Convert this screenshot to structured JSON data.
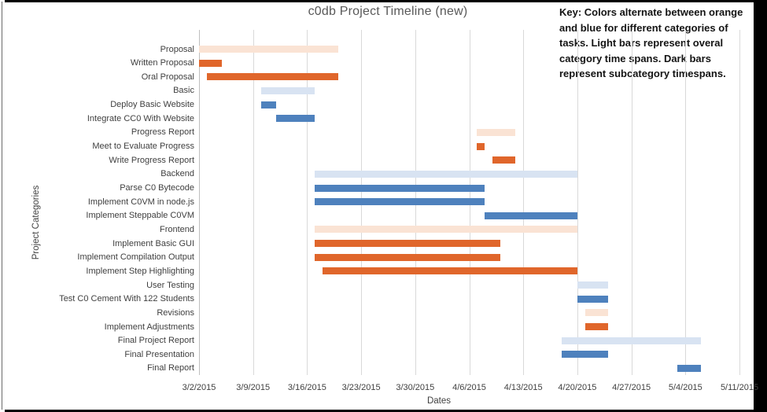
{
  "title": "c0db Project Timeline (new)",
  "key": {
    "lines": [
      "Key: Colors alternate between orange",
      "and blue for different categories of",
      "tasks. Light bars represent overal",
      "category time spans. Dark bars",
      "represent subcategory timespans."
    ]
  },
  "colors": {
    "orange_light": "#FAE3D4",
    "orange_dark": "#E0662B",
    "blue_light": "#D8E3F2",
    "blue_dark": "#4E81BD",
    "gridline": "#D9D9D9",
    "axis_line": "#BFBFBF",
    "title_text": "#595959",
    "axis_text": "#3F3F3F"
  },
  "chart_data": {
    "type": "bar",
    "subtype": "gantt-horizontal",
    "title": "c0db Project Timeline (new)",
    "xlabel": "Dates",
    "ylabel": "Project Categories",
    "grid": "vertical-on",
    "legend": "none (explained in key text)",
    "x_ticks": [
      "3/2/2015",
      "3/9/2015",
      "3/16/2015",
      "3/23/2015",
      "3/30/2015",
      "4/6/2015",
      "4/13/2015",
      "4/20/2015",
      "4/27/2015",
      "5/4/2015",
      "5/11/2015"
    ],
    "x_range_days": [
      0,
      70
    ],
    "day_zero": "3/2/2015",
    "tasks": [
      {
        "label": "Proposal",
        "start": "3/2/2015",
        "end": "3/20/2015",
        "start_day": 0,
        "end_day": 18,
        "color": "orange",
        "shade": "light"
      },
      {
        "label": "Written Proposal",
        "start": "3/2/2015",
        "end": "3/5/2015",
        "start_day": 0,
        "end_day": 3,
        "color": "orange",
        "shade": "dark"
      },
      {
        "label": "Oral Proposal",
        "start": "3/3/2015",
        "end": "3/20/2015",
        "start_day": 1,
        "end_day": 18,
        "color": "orange",
        "shade": "dark"
      },
      {
        "label": "Basic",
        "start": "3/10/2015",
        "end": "3/17/2015",
        "start_day": 8,
        "end_day": 15,
        "color": "blue",
        "shade": "light"
      },
      {
        "label": "Deploy Basic Website",
        "start": "3/10/2015",
        "end": "3/12/2015",
        "start_day": 8,
        "end_day": 10,
        "color": "blue",
        "shade": "dark"
      },
      {
        "label": "Integrate CC0 With Website",
        "start": "3/12/2015",
        "end": "3/17/2015",
        "start_day": 10,
        "end_day": 15,
        "color": "blue",
        "shade": "dark"
      },
      {
        "label": "Progress Report",
        "start": "4/7/2015",
        "end": "4/12/2015",
        "start_day": 36,
        "end_day": 41,
        "color": "orange",
        "shade": "light"
      },
      {
        "label": "Meet to Evaluate Progress",
        "start": "4/7/2015",
        "end": "4/8/2015",
        "start_day": 36,
        "end_day": 37,
        "color": "orange",
        "shade": "dark"
      },
      {
        "label": "Write Progress Report",
        "start": "4/9/2015",
        "end": "4/12/2015",
        "start_day": 38,
        "end_day": 41,
        "color": "orange",
        "shade": "dark"
      },
      {
        "label": "Backend",
        "start": "3/17/2015",
        "end": "4/20/2015",
        "start_day": 15,
        "end_day": 49,
        "color": "blue",
        "shade": "light"
      },
      {
        "label": "Parse C0 Bytecode",
        "start": "3/17/2015",
        "end": "4/8/2015",
        "start_day": 15,
        "end_day": 37,
        "color": "blue",
        "shade": "dark"
      },
      {
        "label": "Implement C0VM in node.js",
        "start": "3/17/2015",
        "end": "4/8/2015",
        "start_day": 15,
        "end_day": 37,
        "color": "blue",
        "shade": "dark"
      },
      {
        "label": "Implement Steppable C0VM",
        "start": "4/8/2015",
        "end": "4/20/2015",
        "start_day": 37,
        "end_day": 49,
        "color": "blue",
        "shade": "dark"
      },
      {
        "label": "Frontend",
        "start": "3/17/2015",
        "end": "4/20/2015",
        "start_day": 15,
        "end_day": 49,
        "color": "orange",
        "shade": "light"
      },
      {
        "label": "Implement Basic GUI",
        "start": "3/17/2015",
        "end": "4/10/2015",
        "start_day": 15,
        "end_day": 39,
        "color": "orange",
        "shade": "dark"
      },
      {
        "label": "Implement Compilation Output",
        "start": "3/17/2015",
        "end": "4/10/2015",
        "start_day": 15,
        "end_day": 39,
        "color": "orange",
        "shade": "dark"
      },
      {
        "label": "Implement Step Highlighting",
        "start": "3/18/2015",
        "end": "4/20/2015",
        "start_day": 16,
        "end_day": 49,
        "color": "orange",
        "shade": "dark"
      },
      {
        "label": "User Testing",
        "start": "4/20/2015",
        "end": "4/24/2015",
        "start_day": 49,
        "end_day": 53,
        "color": "blue",
        "shade": "light"
      },
      {
        "label": "Test C0 Cement With 122 Students",
        "start": "4/20/2015",
        "end": "4/24/2015",
        "start_day": 49,
        "end_day": 53,
        "color": "blue",
        "shade": "dark"
      },
      {
        "label": "Revisions",
        "start": "4/21/2015",
        "end": "4/24/2015",
        "start_day": 50,
        "end_day": 53,
        "color": "orange",
        "shade": "light"
      },
      {
        "label": "Implement Adjustments",
        "start": "4/21/2015",
        "end": "4/24/2015",
        "start_day": 50,
        "end_day": 53,
        "color": "orange",
        "shade": "dark"
      },
      {
        "label": "Final Project Report",
        "start": "4/18/2015",
        "end": "5/6/2015",
        "start_day": 47,
        "end_day": 65,
        "color": "blue",
        "shade": "light"
      },
      {
        "label": "Final Presentation",
        "start": "4/18/2015",
        "end": "4/24/2015",
        "start_day": 47,
        "end_day": 53,
        "color": "blue",
        "shade": "dark"
      },
      {
        "label": "Final Report",
        "start": "5/3/2015",
        "end": "5/6/2015",
        "start_day": 62,
        "end_day": 65,
        "color": "blue",
        "shade": "dark"
      }
    ]
  }
}
